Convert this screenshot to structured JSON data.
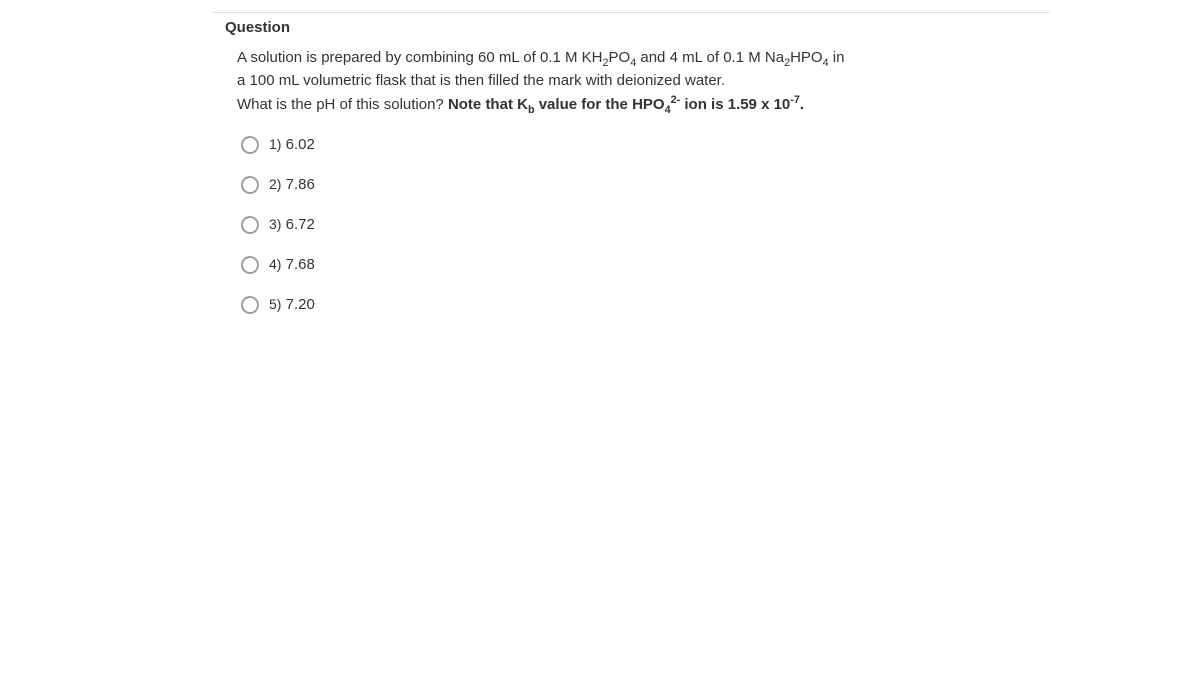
{
  "header": "Question",
  "stem": {
    "p1_a": "A solution is prepared by combining 60 mL of 0.1 M KH",
    "p1_b": "PO",
    "p1_c": " and 4 mL of 0.1 M Na",
    "p1_d": "HPO",
    "p1_e": " in a 100 mL volumetric flask that is then filled the mark with deionized water.",
    "p2_a": "What is the pH of this solution? ",
    "p2_b": "Note that K",
    "p2_c": " value for the HPO",
    "p2_d": " ion is 1.59 x 10",
    "p2_e": "."
  },
  "sub2": "2",
  "sub4": "4",
  "subb": "b",
  "sup2m": "2-",
  "supm7": "-7",
  "options": [
    {
      "n": "1)",
      "v": "6.02"
    },
    {
      "n": "2)",
      "v": "7.86"
    },
    {
      "n": "3)",
      "v": "6.72"
    },
    {
      "n": "4)",
      "v": "7.68"
    },
    {
      "n": "5)",
      "v": "7.20"
    }
  ]
}
